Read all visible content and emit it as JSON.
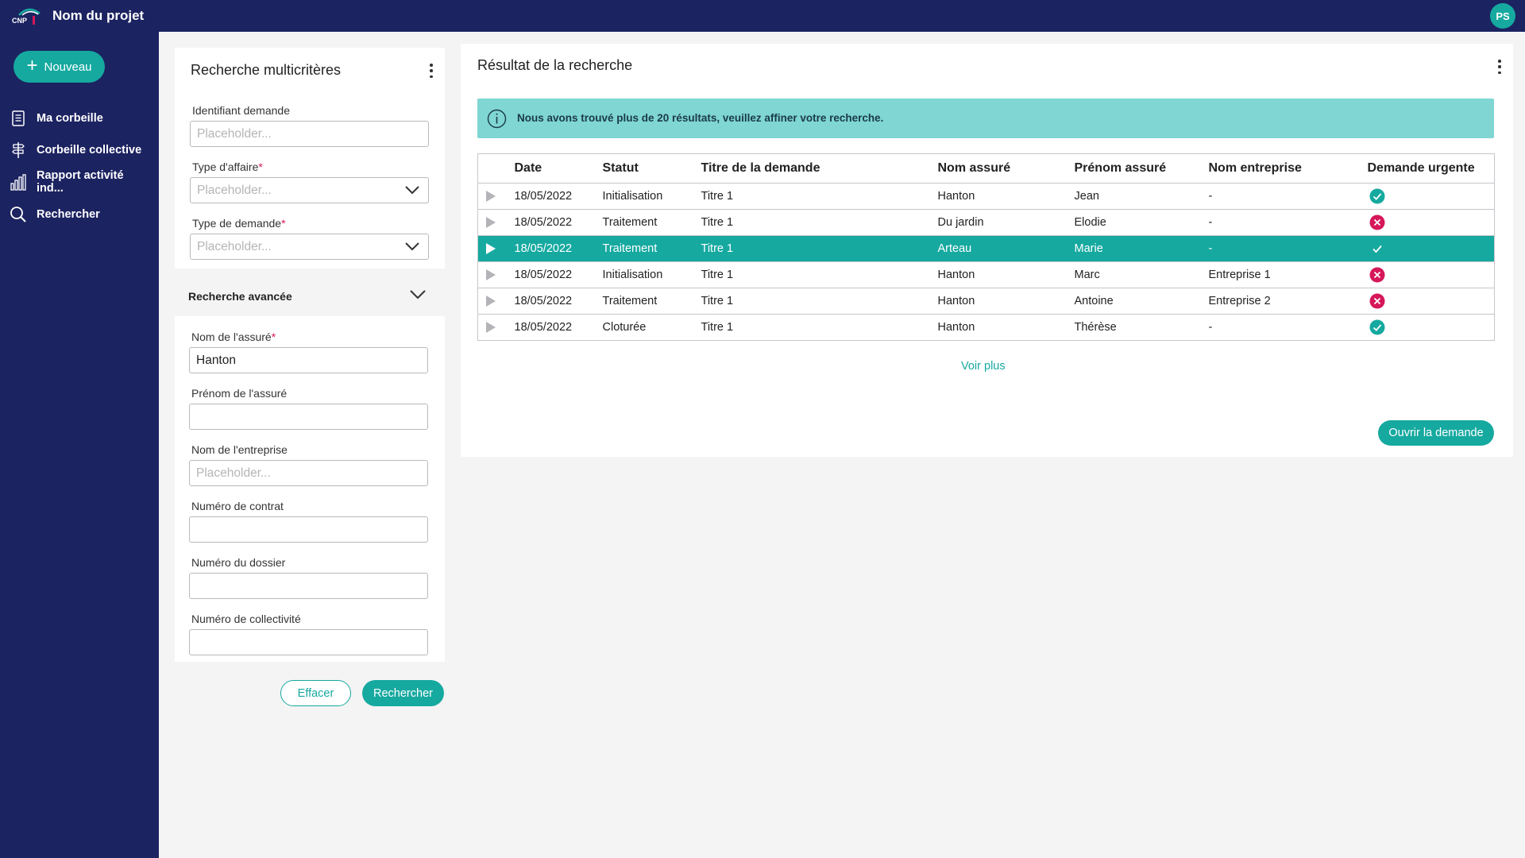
{
  "app": {
    "project_title": "Nom du projet",
    "logo_text": "CNP",
    "avatar_initials": "PS"
  },
  "sidebar": {
    "new_label": "Nouveau",
    "items": [
      {
        "label": "Ma corbeille",
        "icon": "document-icon"
      },
      {
        "label": "Corbeille collective",
        "icon": "signpost-icon"
      },
      {
        "label": "Rapport activité ind...",
        "icon": "bar-chart-icon"
      },
      {
        "label": "Rechercher",
        "icon": "search-icon"
      }
    ]
  },
  "search": {
    "title": "Recherche multicritères",
    "fields": {
      "identifiant": {
        "label": "Identifiant demande",
        "placeholder": "Placeholder..."
      },
      "type_affaire": {
        "label": "Type d'affaire",
        "required": "*",
        "placeholder": "Placeholder..."
      },
      "type_demande": {
        "label": "Type de demande",
        "required": "*",
        "placeholder": "Placeholder..."
      }
    },
    "advanced": {
      "title": "Recherche avancée",
      "fields": {
        "nom_assure": {
          "label": "Nom de l'assuré",
          "required": "*",
          "value": "Hanton"
        },
        "prenom_assure": {
          "label": "Prénom de l'assuré",
          "value": ""
        },
        "nom_entreprise": {
          "label": "Nom de l'entreprise",
          "placeholder": "Placeholder..."
        },
        "numero_contrat": {
          "label": "Numéro de contrat",
          "value": ""
        },
        "numero_dossier": {
          "label": "Numéro du dossier",
          "value": ""
        },
        "numero_collectivite": {
          "label": "Numéro de collectivité",
          "value": ""
        }
      }
    },
    "clear_label": "Effacer",
    "search_label": "Rechercher"
  },
  "results": {
    "title": "Résultat de la recherche",
    "info_banner": "Nous avons trouvé plus de 20 résultats, veuillez affiner votre recherche.",
    "columns": [
      "Date",
      "Statut",
      "Titre de la demande",
      "Nom assuré",
      "Prénom assuré",
      "Nom entreprise",
      "Demande urgente"
    ],
    "rows": [
      {
        "date": "18/05/2022",
        "statut": "Initialisation",
        "titre": "Titre 1",
        "nom": "Hanton",
        "prenom": "Jean",
        "entreprise": "-",
        "urgent": "yes",
        "selected": false
      },
      {
        "date": "18/05/2022",
        "statut": "Traitement",
        "titre": "Titre 1",
        "nom": "Du jardin",
        "prenom": "Elodie",
        "entreprise": "-",
        "urgent": "no",
        "selected": false
      },
      {
        "date": "18/05/2022",
        "statut": "Traitement",
        "titre": "Titre 1",
        "nom": "Arteau",
        "prenom": "Marie",
        "entreprise": "-",
        "urgent": "yes",
        "selected": true
      },
      {
        "date": "18/05/2022",
        "statut": "Initialisation",
        "titre": "Titre 1",
        "nom": "Hanton",
        "prenom": "Marc",
        "entreprise": "Entreprise 1",
        "urgent": "no",
        "selected": false
      },
      {
        "date": "18/05/2022",
        "statut": "Traitement",
        "titre": "Titre 1",
        "nom": "Hanton",
        "prenom": "Antoine",
        "entreprise": "Entreprise 2",
        "urgent": "no",
        "selected": false
      },
      {
        "date": "18/05/2022",
        "statut": "Cloturée",
        "titre": "Titre 1",
        "nom": "Hanton",
        "prenom": "Thérèse",
        "entreprise": "-",
        "urgent": "yes",
        "selected": false
      }
    ],
    "see_more_label": "Voir plus",
    "open_label": "Ouvrir la demande"
  },
  "colors": {
    "navy": "#1c2361",
    "teal": "#16a9a0",
    "banner": "#7fd6d3",
    "error": "#d6175a"
  }
}
